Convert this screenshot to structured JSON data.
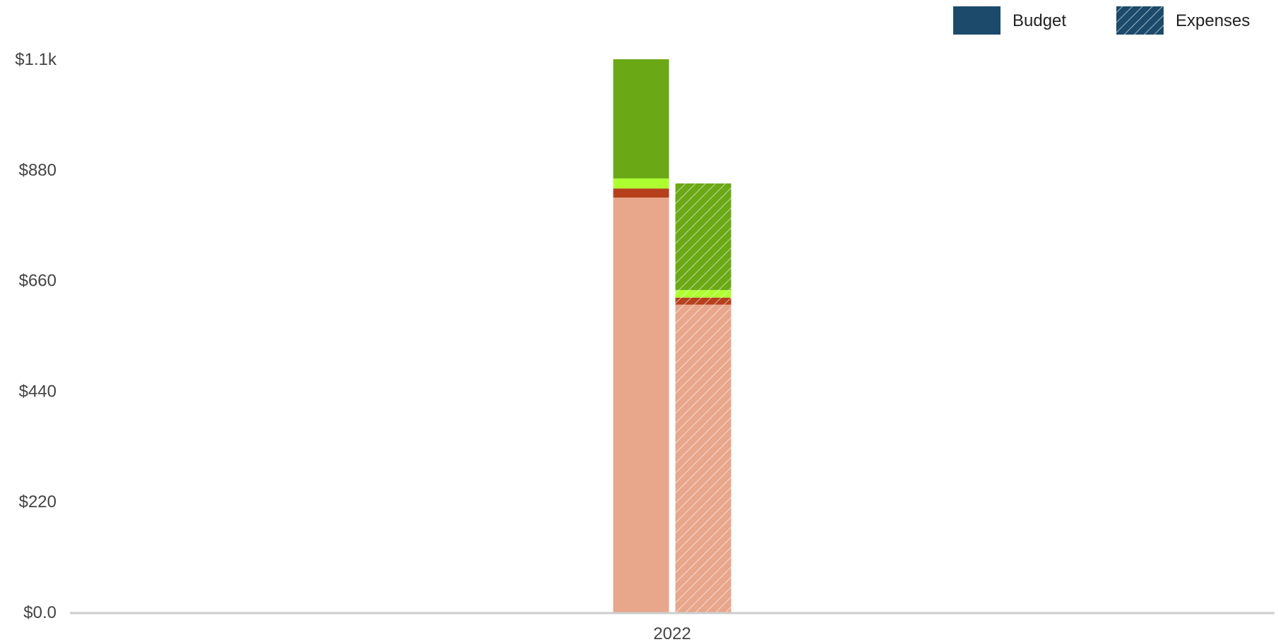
{
  "chart_data": {
    "type": "bar",
    "stacked": true,
    "title": "",
    "xlabel": "",
    "ylabel": "",
    "categories": [
      "2022"
    ],
    "ylim": [
      0,
      1100
    ],
    "yticks": [
      "$0.0",
      "$220",
      "$440",
      "$660",
      "$880",
      "$1.1k"
    ],
    "ytick_values": [
      0,
      220,
      440,
      660,
      880,
      1100
    ],
    "grid": false,
    "legend_position": "top-right",
    "legend": [
      {
        "label": "Budget",
        "pattern": "solid",
        "color": "#1b4a6b"
      },
      {
        "label": "Expenses",
        "pattern": "hatched",
        "color": "#1b4a6b"
      }
    ],
    "groups": [
      {
        "name": "Budget",
        "pattern": "solid",
        "segments": [
          {
            "color": "#e8a68b",
            "values": [
              825
            ]
          },
          {
            "color": "#b5401b",
            "values": [
              18
            ]
          },
          {
            "color": "#adff2f",
            "values": [
              20
            ]
          },
          {
            "color": "#6aa815",
            "values": [
              237
            ]
          }
        ]
      },
      {
        "name": "Expenses",
        "pattern": "hatched",
        "segments": [
          {
            "color": "#e8a68b",
            "values": [
              612
            ]
          },
          {
            "color": "#b5401b",
            "values": [
              14
            ]
          },
          {
            "color": "#adff2f",
            "values": [
              15
            ]
          },
          {
            "color": "#6aa815",
            "values": [
              212
            ]
          }
        ]
      }
    ]
  }
}
